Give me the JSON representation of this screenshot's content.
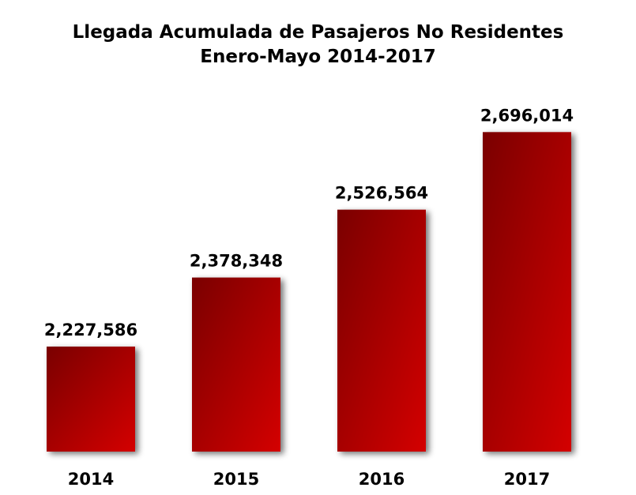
{
  "chart_data": {
    "type": "bar",
    "title": "Llegada Acumulada de Pasajeros No Residentes",
    "subtitle": "Enero-Mayo 2014-2017",
    "categories": [
      "2014",
      "2015",
      "2016",
      "2017"
    ],
    "values": [
      2227586,
      2378348,
      2526564,
      2696014
    ],
    "value_labels": [
      "2,227,586",
      "2,378,348",
      "2,526,564",
      "2,696,014"
    ],
    "xlabel": "",
    "ylabel": "",
    "grid": false,
    "legend": "none",
    "colors": {
      "bar_dark": "#7a0000",
      "bar_light": "#d40000",
      "shadow": "#000000",
      "text": "#000000"
    }
  }
}
